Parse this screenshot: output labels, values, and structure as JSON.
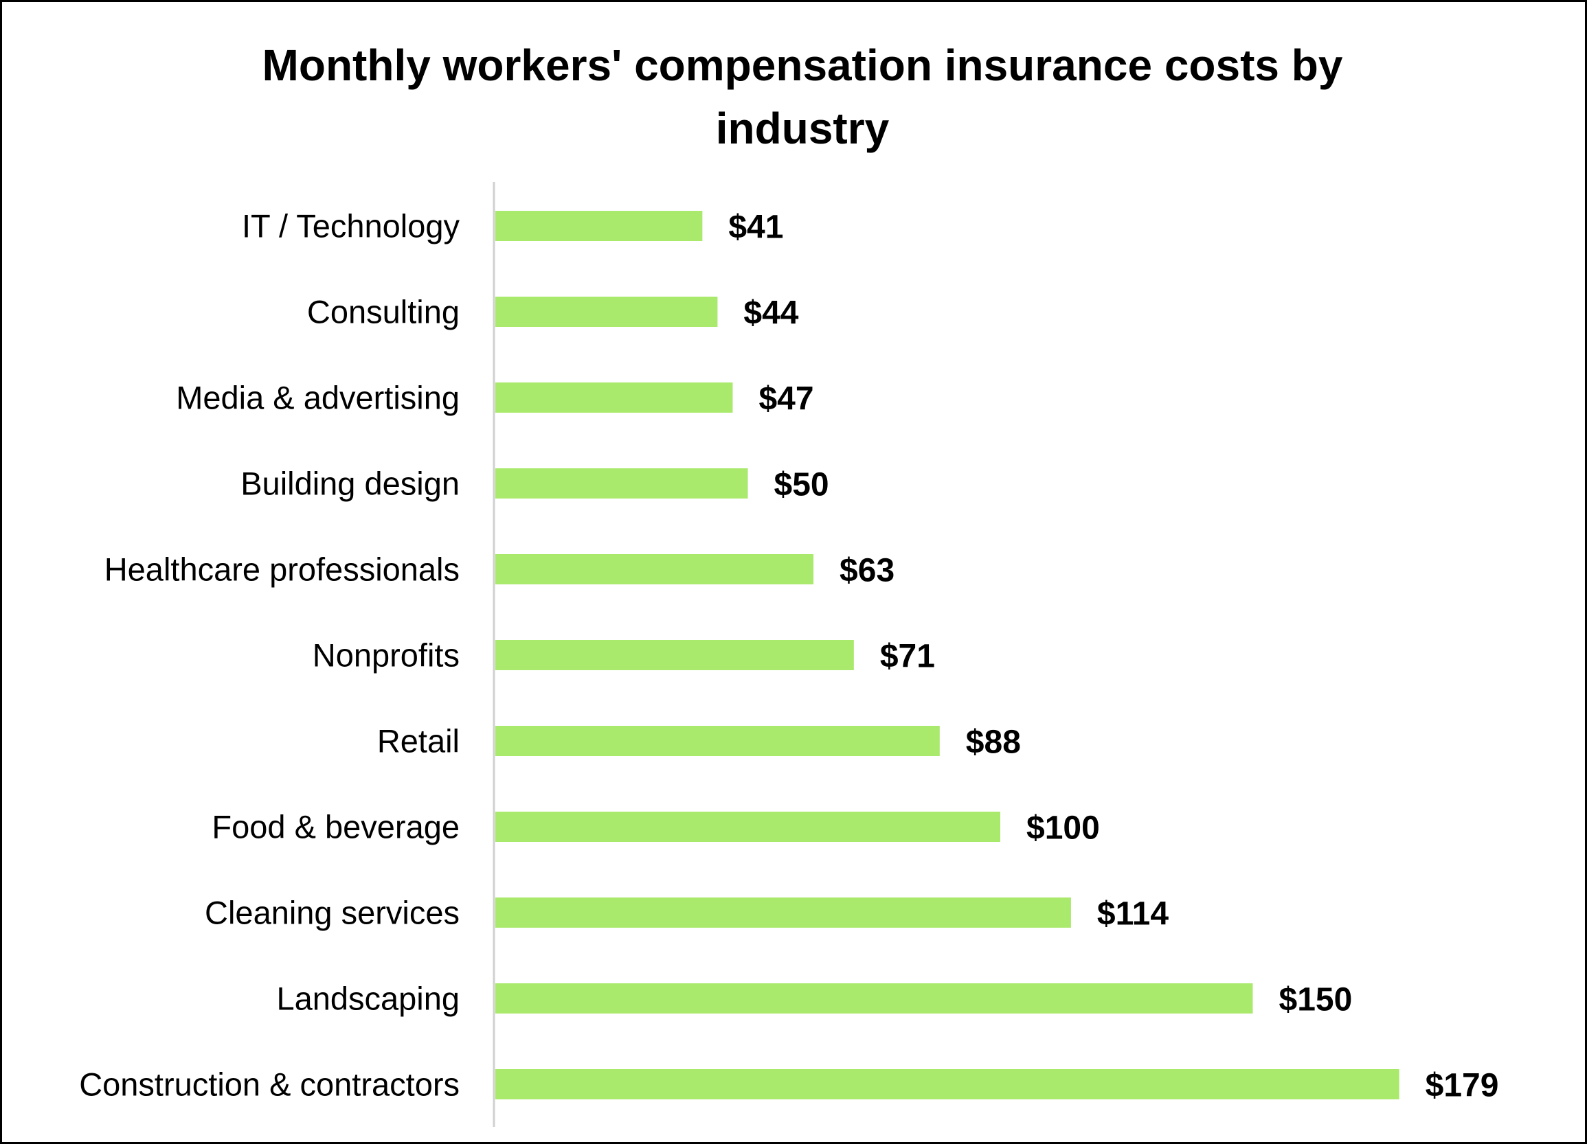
{
  "chart_data": {
    "type": "bar",
    "orientation": "horizontal",
    "title": "Monthly workers' compensation insurance costs by industry",
    "xlabel": "",
    "ylabel": "",
    "categories": [
      "IT / Technology",
      "Consulting",
      "Media & advertising",
      "Building design",
      "Healthcare professionals",
      "Nonprofits",
      "Retail",
      "Food & beverage",
      "Cleaning services",
      "Landscaping",
      "Construction & contractors"
    ],
    "values": [
      41,
      44,
      47,
      50,
      63,
      71,
      88,
      100,
      114,
      150,
      179
    ],
    "value_labels": [
      "$41",
      "$44",
      "$47",
      "$50",
      "$63",
      "$71",
      "$88",
      "$100",
      "$114",
      "$150",
      "$179"
    ],
    "xlim": [
      0,
      190
    ],
    "grid": false,
    "legend": "none",
    "bar_color": "#a9e96b",
    "axis_color": "#d0d0d0"
  }
}
